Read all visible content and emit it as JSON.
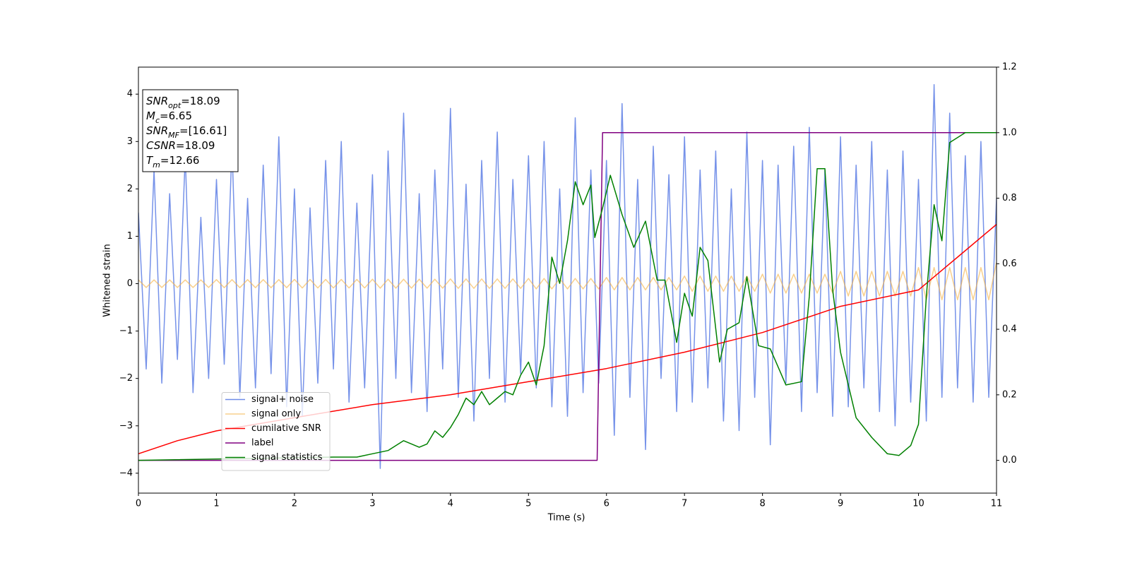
{
  "chart_data": {
    "type": "line",
    "xlabel": "Time (s)",
    "ylabel": "Whitened strain",
    "xlim": [
      0,
      11
    ],
    "ylim": [
      -4.42,
      4.57
    ],
    "y2lim": [
      -0.1,
      1.2
    ],
    "xticks": [
      0,
      1,
      2,
      3,
      4,
      5,
      6,
      7,
      8,
      9,
      10,
      11
    ],
    "yticks": [
      {
        "value": -4,
        "label": "−4"
      },
      {
        "value": -3,
        "label": "−3"
      },
      {
        "value": -2,
        "label": "−2"
      },
      {
        "value": -1,
        "label": "−1"
      },
      0,
      1,
      2,
      3,
      4
    ],
    "y2ticks": [
      {
        "value": 0,
        "label": "0.0"
      },
      0.2,
      0.4,
      0.6,
      0.8,
      {
        "value": 1,
        "label": "1.0"
      },
      1.2
    ],
    "legend": "lower left",
    "annotations": [
      {
        "base": "SNR",
        "sub": "opt",
        "text": "=18.09"
      },
      {
        "base": "M",
        "sub": "c",
        "text": "=6.65"
      },
      {
        "base": "SNR",
        "sub": "MF",
        "text": "=[16.61]"
      },
      {
        "base": "CSNR",
        "sub": null,
        "text": "=18.09"
      },
      {
        "base": "T",
        "sub": "m",
        "text": "=12.66"
      }
    ],
    "x": [
      0,
      0.1,
      0.2,
      0.3,
      0.4,
      0.5,
      0.6,
      0.7,
      0.8,
      0.9,
      1,
      1.1,
      1.2,
      1.3,
      1.4,
      1.5,
      1.6,
      1.7,
      1.8,
      1.9,
      2,
      2.1,
      2.2,
      2.3,
      2.4,
      2.5,
      2.6,
      2.7,
      2.8,
      2.9,
      3,
      3.1,
      3.2,
      3.3,
      3.4,
      3.5,
      3.6,
      3.7,
      3.8,
      3.9,
      4,
      4.1,
      4.2,
      4.3,
      4.4,
      4.5,
      4.6,
      4.7,
      4.8,
      4.9,
      5,
      5.1,
      5.2,
      5.3,
      5.4,
      5.5,
      5.6,
      5.7,
      5.8,
      5.9,
      6,
      6.1,
      6.2,
      6.3,
      6.4,
      6.5,
      6.6,
      6.7,
      6.8,
      6.9,
      7,
      7.1,
      7.2,
      7.3,
      7.4,
      7.5,
      7.6,
      7.7,
      7.8,
      7.9,
      8,
      8.1,
      8.2,
      8.3,
      8.4,
      8.5,
      8.6,
      8.7,
      8.8,
      8.9,
      9,
      9.1,
      9.2,
      9.3,
      9.4,
      9.5,
      9.6,
      9.7,
      9.8,
      9.9,
      10,
      10.1,
      10.2,
      10.3,
      10.4,
      10.5,
      10.6,
      10.7,
      10.8,
      10.9,
      11
    ],
    "series": [
      {
        "name": "signal+ noise",
        "color": "#6f8ce8",
        "axis": "y",
        "values": [
          1.5,
          -1.8,
          2.4,
          -2.1,
          1.9,
          -1.6,
          2.7,
          -2.3,
          1.4,
          -2.0,
          2.2,
          -1.7,
          2.9,
          -2.4,
          1.8,
          -2.2,
          2.5,
          -1.9,
          3.1,
          -2.6,
          2.0,
          -2.8,
          1.6,
          -2.1,
          2.6,
          -1.8,
          3.0,
          -2.5,
          1.7,
          -2.2,
          2.3,
          -3.9,
          2.8,
          -2.0,
          3.6,
          -2.3,
          1.9,
          -2.7,
          2.4,
          -1.8,
          3.7,
          -2.4,
          2.1,
          -2.9,
          2.6,
          -2.0,
          3.2,
          -2.5,
          2.2,
          -1.9,
          2.7,
          -2.2,
          3.0,
          -2.6,
          2.0,
          -2.8,
          3.5,
          -2.3,
          2.4,
          -2.1,
          2.6,
          -3.2,
          3.8,
          -2.4,
          2.2,
          -3.5,
          2.9,
          -2.0,
          2.3,
          -2.7,
          3.1,
          -2.5,
          2.4,
          -2.2,
          2.8,
          -2.9,
          2.0,
          -3.1,
          3.2,
          -2.4,
          2.6,
          -3.4,
          2.5,
          -2.1,
          2.9,
          -2.7,
          3.3,
          -2.3,
          2.4,
          -2.8,
          3.1,
          -2.6,
          2.5,
          -2.2,
          3.0,
          -2.7,
          2.4,
          -3.0,
          2.8,
          -2.5,
          2.2,
          -2.9,
          4.2,
          -2.4,
          3.6,
          -2.2,
          2.7,
          -2.5,
          3.0,
          -2.4,
          1.8
        ]
      },
      {
        "name": "signal only",
        "color": "#f5b041",
        "axis": "y",
        "values": [
          0.08,
          -0.08,
          0.08,
          -0.08,
          0.08,
          -0.08,
          0.08,
          -0.08,
          0.08,
          -0.08,
          0.085,
          -0.085,
          0.085,
          -0.085,
          0.085,
          -0.085,
          0.085,
          -0.085,
          0.085,
          -0.085,
          0.09,
          -0.09,
          0.09,
          -0.09,
          0.09,
          -0.09,
          0.09,
          -0.09,
          0.09,
          -0.09,
          0.095,
          -0.095,
          0.095,
          -0.095,
          0.095,
          -0.095,
          0.095,
          -0.095,
          0.095,
          -0.095,
          0.1,
          -0.1,
          0.1,
          -0.1,
          0.1,
          -0.1,
          0.1,
          -0.1,
          0.1,
          -0.1,
          0.11,
          -0.11,
          0.11,
          -0.11,
          0.11,
          -0.11,
          0.11,
          -0.11,
          0.11,
          -0.11,
          0.13,
          -0.13,
          0.13,
          -0.13,
          0.13,
          -0.13,
          0.13,
          -0.13,
          0.13,
          -0.13,
          0.16,
          -0.16,
          0.16,
          -0.16,
          0.16,
          -0.16,
          0.16,
          -0.16,
          0.16,
          -0.16,
          0.2,
          -0.2,
          0.2,
          -0.2,
          0.2,
          -0.2,
          0.2,
          -0.2,
          0.2,
          -0.2,
          0.26,
          -0.26,
          0.26,
          -0.26,
          0.26,
          -0.26,
          0.26,
          -0.26,
          0.26,
          -0.26,
          0.34,
          -0.34,
          0.34,
          -0.34,
          0.34,
          -0.34,
          0.34,
          -0.34,
          0.34,
          -0.34,
          0.45
        ]
      },
      {
        "name": "cumilative SNR",
        "color": "#ff0000",
        "axis": "y2",
        "x": [
          0,
          0.5,
          1,
          2,
          3,
          4,
          5,
          6,
          7,
          8,
          9,
          10,
          10.5,
          11
        ],
        "values": [
          0.02,
          0.06,
          0.09,
          0.13,
          0.17,
          0.2,
          0.24,
          0.28,
          0.33,
          0.39,
          0.47,
          0.52,
          0.62,
          0.72
        ]
      },
      {
        "name": "label",
        "color": "#800080",
        "axis": "y2",
        "x": [
          0,
          5.88,
          5.95,
          11
        ],
        "values": [
          0,
          0,
          1,
          1
        ]
      },
      {
        "name": "signal statistics",
        "color": "#008000",
        "axis": "y2",
        "x": [
          0,
          2.5,
          2.8,
          3.0,
          3.2,
          3.4,
          3.5,
          3.6,
          3.7,
          3.8,
          3.9,
          4.0,
          4.1,
          4.2,
          4.3,
          4.4,
          4.5,
          4.6,
          4.7,
          4.8,
          4.9,
          5.0,
          5.1,
          5.2,
          5.3,
          5.4,
          5.5,
          5.6,
          5.7,
          5.8,
          5.85,
          5.95,
          6.05,
          6.2,
          6.35,
          6.5,
          6.65,
          6.75,
          6.9,
          7.0,
          7.1,
          7.2,
          7.3,
          7.45,
          7.55,
          7.7,
          7.8,
          7.95,
          8.1,
          8.3,
          8.5,
          8.6,
          8.7,
          8.8,
          8.9,
          9.0,
          9.2,
          9.4,
          9.6,
          9.75,
          9.9,
          10.0,
          10.1,
          10.2,
          10.3,
          10.4,
          10.6,
          11
        ],
        "values": [
          0,
          0.01,
          0.01,
          0.02,
          0.03,
          0.06,
          0.05,
          0.04,
          0.05,
          0.09,
          0.07,
          0.1,
          0.14,
          0.19,
          0.17,
          0.21,
          0.17,
          0.19,
          0.21,
          0.2,
          0.26,
          0.3,
          0.23,
          0.35,
          0.62,
          0.54,
          0.67,
          0.85,
          0.78,
          0.84,
          0.68,
          0.77,
          0.87,
          0.75,
          0.65,
          0.73,
          0.55,
          0.55,
          0.36,
          0.51,
          0.44,
          0.65,
          0.61,
          0.3,
          0.4,
          0.42,
          0.56,
          0.35,
          0.34,
          0.23,
          0.24,
          0.5,
          0.89,
          0.89,
          0.52,
          0.33,
          0.13,
          0.07,
          0.02,
          0.015,
          0.045,
          0.11,
          0.5,
          0.78,
          0.67,
          0.97,
          1,
          1
        ]
      }
    ]
  }
}
